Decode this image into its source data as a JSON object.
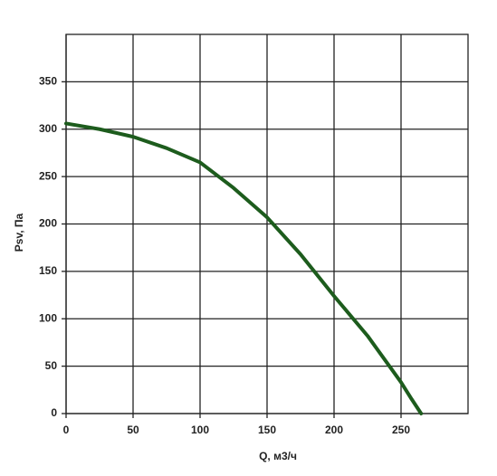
{
  "chart_data": {
    "type": "line",
    "x_label": "Q, м3/ч",
    "y_label": "Psv, Па",
    "series": [
      {
        "name": "Psv",
        "color": "#1d5c1d",
        "x": [
          0,
          25,
          50,
          75,
          100,
          125,
          150,
          175,
          200,
          225,
          250,
          258,
          265
        ],
        "values": [
          306,
          300,
          292,
          280,
          265,
          238,
          207,
          168,
          124,
          82,
          33,
          15,
          0
        ]
      }
    ],
    "xlim": [
      0,
      300
    ],
    "xticks": [
      0,
      50,
      100,
      150,
      200,
      250
    ],
    "ylim": [
      0,
      400
    ],
    "yticks": [
      0,
      50,
      100,
      150,
      200,
      250,
      300,
      350
    ],
    "grid": true
  }
}
